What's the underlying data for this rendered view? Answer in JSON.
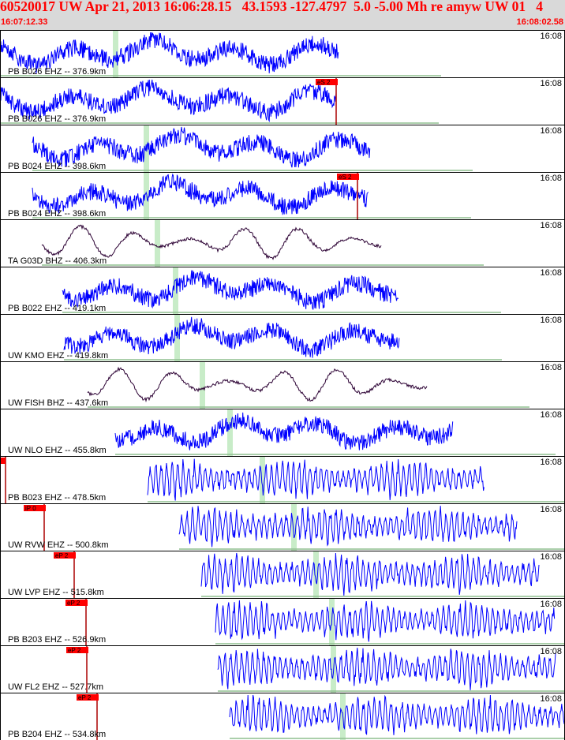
{
  "header": {
    "title": "60520017 UW Apr 21, 2013 16:06:28.15   43.1593 -127.4797  5.0 -5.00 Mh re amyw UW 01   4",
    "start_time": "16:07:12.33",
    "end_time": "16:08:02.58"
  },
  "colors": {
    "trace": "#0000ff",
    "broadband_trace": "#2b0033",
    "pick": "#ff0000",
    "phase_window": "#c8ecc8",
    "baseline": "#8fbf8f"
  },
  "traces": [
    {
      "label": "PB B026 EHZ -- 376.9km",
      "time": "16:08",
      "pick": null,
      "type": "sp"
    },
    {
      "label": "PB B026 EHZ -- 376.9km",
      "time": "16:08",
      "pick": "eS 2",
      "type": "sp"
    },
    {
      "label": "PB B024 EHZ -- 398.6km",
      "time": "16:08",
      "pick": null,
      "type": "sp"
    },
    {
      "label": "PB B024 EHZ -- 398.6km",
      "time": "16:08",
      "pick": "eS 2",
      "type": "sp"
    },
    {
      "label": "TA G03D BHZ -- 406.3km",
      "time": "16:08",
      "pick": null,
      "type": "bb"
    },
    {
      "label": "PB B022 EHZ -- 419.1km",
      "time": "16:08",
      "pick": null,
      "type": "sp"
    },
    {
      "label": "UW KMO EHZ -- 419.8km",
      "time": "16:08",
      "pick": null,
      "type": "sp"
    },
    {
      "label": "UW FISH BHZ -- 437.6km",
      "time": "16:08",
      "pick": null,
      "type": "bb"
    },
    {
      "label": "UW NLO EHZ -- 455.8km",
      "time": "16:08",
      "pick": null,
      "type": "sp"
    },
    {
      "label": "PB B023 EHZ -- 478.5km",
      "time": "16:08",
      "pick": "",
      "type": "hf"
    },
    {
      "label": "UW RVW EHZ -- 500.8km",
      "time": "16:08",
      "pick": "iP 0",
      "type": "hf"
    },
    {
      "label": "UW LVP EHZ -- 515.8km",
      "time": "16:08",
      "pick": "eP 2",
      "type": "hf"
    },
    {
      "label": "PB B203 EHZ -- 526.9km",
      "time": "16:08",
      "pick": "eP 2",
      "type": "hf"
    },
    {
      "label": "UW FL2 EHZ -- 527.7km",
      "time": "16:08",
      "pick": "eP 2",
      "type": "hf"
    },
    {
      "label": "PB B204 EHZ -- 534.8km",
      "time": "16:08",
      "pick": "eP 2",
      "type": "hf"
    }
  ]
}
